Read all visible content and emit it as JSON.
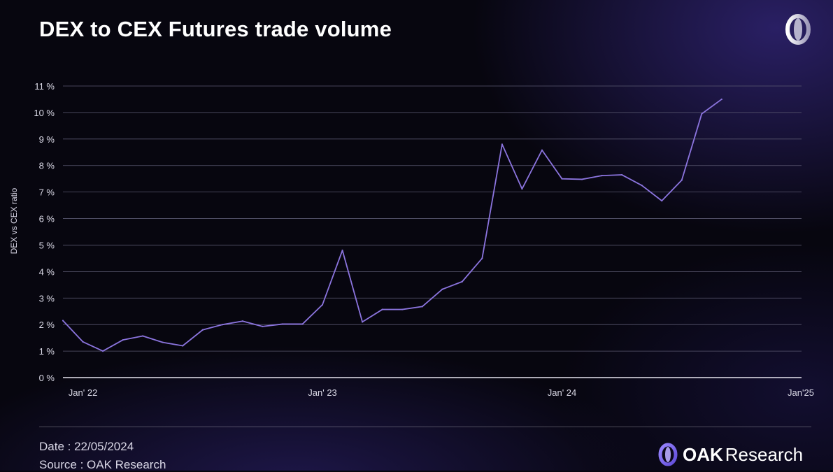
{
  "header": {
    "title": "DEX to CEX Futures trade volume"
  },
  "footer": {
    "date": "Date : 22/05/2024",
    "source": "Source : OAK Research",
    "brand_bold": "OAK",
    "brand_light": "Research"
  },
  "logo": {
    "icon": "oak-logo-icon"
  },
  "colors": {
    "line": "#8b74de",
    "grid": "#5a5870",
    "axis": "#e6e4ee",
    "background": "#07060f",
    "accent": "#7b68ee"
  },
  "chart_data": {
    "type": "line",
    "title": "DEX to CEX Futures trade volume",
    "xlabel": "",
    "ylabel": "DEX vs CEX ratio",
    "ylim": [
      0,
      11
    ],
    "yticks": [
      0,
      1,
      2,
      3,
      4,
      5,
      6,
      7,
      8,
      9,
      10,
      11
    ],
    "ytick_labels": [
      "0 %",
      "1 %",
      "2 %",
      "3 %",
      "4 %",
      "5 %",
      "6 %",
      "7 %",
      "8 %",
      "9 %",
      "10 %",
      "11 %"
    ],
    "xlim": [
      "2021-12",
      "2025-01"
    ],
    "xticks": [
      "2022-01",
      "2023-01",
      "2024-01",
      "2025-01"
    ],
    "xtick_labels": [
      "Jan' 22",
      "Jan' 23",
      "Jan' 24",
      "Jan'25"
    ],
    "grid": true,
    "series": [
      {
        "values": [
          {
            "x": "2021-12",
            "y": 2.15
          },
          {
            "x": "2022-01",
            "y": 1.35
          },
          {
            "x": "2022-02",
            "y": 1.0
          },
          {
            "x": "2022-03",
            "y": 1.42
          },
          {
            "x": "2022-04",
            "y": 1.57
          },
          {
            "x": "2022-05",
            "y": 1.33
          },
          {
            "x": "2022-06",
            "y": 1.2
          },
          {
            "x": "2022-07",
            "y": 1.8
          },
          {
            "x": "2022-08",
            "y": 2.0
          },
          {
            "x": "2022-09",
            "y": 2.13
          },
          {
            "x": "2022-10",
            "y": 1.93
          },
          {
            "x": "2022-11",
            "y": 2.02
          },
          {
            "x": "2022-12",
            "y": 2.02
          },
          {
            "x": "2023-01",
            "y": 2.75
          },
          {
            "x": "2023-02",
            "y": 4.8
          },
          {
            "x": "2023-03",
            "y": 2.1
          },
          {
            "x": "2023-04",
            "y": 2.57
          },
          {
            "x": "2023-05",
            "y": 2.57
          },
          {
            "x": "2023-06",
            "y": 2.68
          },
          {
            "x": "2023-07",
            "y": 3.33
          },
          {
            "x": "2023-08",
            "y": 3.62
          },
          {
            "x": "2023-09",
            "y": 4.5
          },
          {
            "x": "2023-10",
            "y": 8.8
          },
          {
            "x": "2023-11",
            "y": 7.12
          },
          {
            "x": "2023-12",
            "y": 8.58
          },
          {
            "x": "2024-01",
            "y": 7.5
          },
          {
            "x": "2024-02",
            "y": 7.48
          },
          {
            "x": "2024-03",
            "y": 7.62
          },
          {
            "x": "2024-04",
            "y": 7.65
          },
          {
            "x": "2024-05",
            "y": 7.25
          },
          {
            "x": "2024-06",
            "y": 6.67
          },
          {
            "x": "2024-07",
            "y": 7.45
          },
          {
            "x": "2024-08",
            "y": 9.95
          },
          {
            "x": "2024-09",
            "y": 10.5
          }
        ]
      }
    ]
  }
}
